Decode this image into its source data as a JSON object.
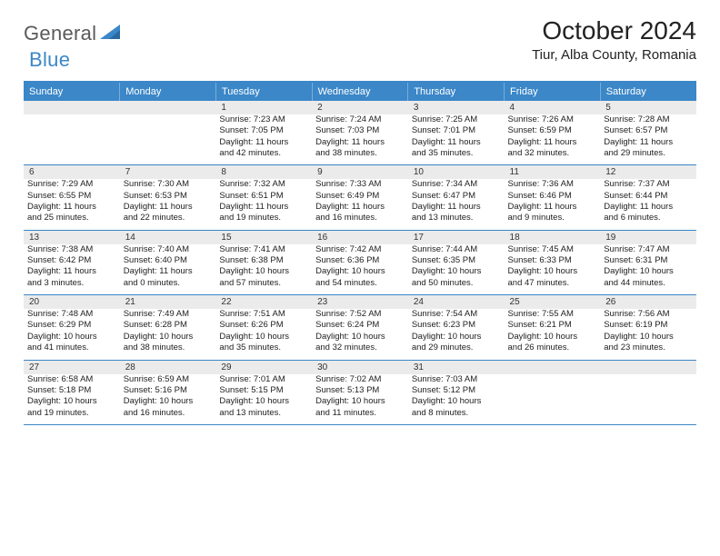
{
  "logo": {
    "primary": "General",
    "secondary": "Blue"
  },
  "title": "October 2024",
  "location": "Tiur, Alba County, Romania",
  "colors": {
    "header_bg": "#3b87c8",
    "header_text": "#ffffff",
    "daynum_bg": "#ebebeb",
    "border": "#3b87c8",
    "logo_gray": "#5a5a5a",
    "logo_blue": "#3b87c8"
  },
  "day_headers": [
    "Sunday",
    "Monday",
    "Tuesday",
    "Wednesday",
    "Thursday",
    "Friday",
    "Saturday"
  ],
  "weeks": [
    [
      null,
      null,
      {
        "n": "1",
        "sr": "Sunrise: 7:23 AM",
        "ss": "Sunset: 7:05 PM",
        "d1": "Daylight: 11 hours",
        "d2": "and 42 minutes."
      },
      {
        "n": "2",
        "sr": "Sunrise: 7:24 AM",
        "ss": "Sunset: 7:03 PM",
        "d1": "Daylight: 11 hours",
        "d2": "and 38 minutes."
      },
      {
        "n": "3",
        "sr": "Sunrise: 7:25 AM",
        "ss": "Sunset: 7:01 PM",
        "d1": "Daylight: 11 hours",
        "d2": "and 35 minutes."
      },
      {
        "n": "4",
        "sr": "Sunrise: 7:26 AM",
        "ss": "Sunset: 6:59 PM",
        "d1": "Daylight: 11 hours",
        "d2": "and 32 minutes."
      },
      {
        "n": "5",
        "sr": "Sunrise: 7:28 AM",
        "ss": "Sunset: 6:57 PM",
        "d1": "Daylight: 11 hours",
        "d2": "and 29 minutes."
      }
    ],
    [
      {
        "n": "6",
        "sr": "Sunrise: 7:29 AM",
        "ss": "Sunset: 6:55 PM",
        "d1": "Daylight: 11 hours",
        "d2": "and 25 minutes."
      },
      {
        "n": "7",
        "sr": "Sunrise: 7:30 AM",
        "ss": "Sunset: 6:53 PM",
        "d1": "Daylight: 11 hours",
        "d2": "and 22 minutes."
      },
      {
        "n": "8",
        "sr": "Sunrise: 7:32 AM",
        "ss": "Sunset: 6:51 PM",
        "d1": "Daylight: 11 hours",
        "d2": "and 19 minutes."
      },
      {
        "n": "9",
        "sr": "Sunrise: 7:33 AM",
        "ss": "Sunset: 6:49 PM",
        "d1": "Daylight: 11 hours",
        "d2": "and 16 minutes."
      },
      {
        "n": "10",
        "sr": "Sunrise: 7:34 AM",
        "ss": "Sunset: 6:47 PM",
        "d1": "Daylight: 11 hours",
        "d2": "and 13 minutes."
      },
      {
        "n": "11",
        "sr": "Sunrise: 7:36 AM",
        "ss": "Sunset: 6:46 PM",
        "d1": "Daylight: 11 hours",
        "d2": "and 9 minutes."
      },
      {
        "n": "12",
        "sr": "Sunrise: 7:37 AM",
        "ss": "Sunset: 6:44 PM",
        "d1": "Daylight: 11 hours",
        "d2": "and 6 minutes."
      }
    ],
    [
      {
        "n": "13",
        "sr": "Sunrise: 7:38 AM",
        "ss": "Sunset: 6:42 PM",
        "d1": "Daylight: 11 hours",
        "d2": "and 3 minutes."
      },
      {
        "n": "14",
        "sr": "Sunrise: 7:40 AM",
        "ss": "Sunset: 6:40 PM",
        "d1": "Daylight: 11 hours",
        "d2": "and 0 minutes."
      },
      {
        "n": "15",
        "sr": "Sunrise: 7:41 AM",
        "ss": "Sunset: 6:38 PM",
        "d1": "Daylight: 10 hours",
        "d2": "and 57 minutes."
      },
      {
        "n": "16",
        "sr": "Sunrise: 7:42 AM",
        "ss": "Sunset: 6:36 PM",
        "d1": "Daylight: 10 hours",
        "d2": "and 54 minutes."
      },
      {
        "n": "17",
        "sr": "Sunrise: 7:44 AM",
        "ss": "Sunset: 6:35 PM",
        "d1": "Daylight: 10 hours",
        "d2": "and 50 minutes."
      },
      {
        "n": "18",
        "sr": "Sunrise: 7:45 AM",
        "ss": "Sunset: 6:33 PM",
        "d1": "Daylight: 10 hours",
        "d2": "and 47 minutes."
      },
      {
        "n": "19",
        "sr": "Sunrise: 7:47 AM",
        "ss": "Sunset: 6:31 PM",
        "d1": "Daylight: 10 hours",
        "d2": "and 44 minutes."
      }
    ],
    [
      {
        "n": "20",
        "sr": "Sunrise: 7:48 AM",
        "ss": "Sunset: 6:29 PM",
        "d1": "Daylight: 10 hours",
        "d2": "and 41 minutes."
      },
      {
        "n": "21",
        "sr": "Sunrise: 7:49 AM",
        "ss": "Sunset: 6:28 PM",
        "d1": "Daylight: 10 hours",
        "d2": "and 38 minutes."
      },
      {
        "n": "22",
        "sr": "Sunrise: 7:51 AM",
        "ss": "Sunset: 6:26 PM",
        "d1": "Daylight: 10 hours",
        "d2": "and 35 minutes."
      },
      {
        "n": "23",
        "sr": "Sunrise: 7:52 AM",
        "ss": "Sunset: 6:24 PM",
        "d1": "Daylight: 10 hours",
        "d2": "and 32 minutes."
      },
      {
        "n": "24",
        "sr": "Sunrise: 7:54 AM",
        "ss": "Sunset: 6:23 PM",
        "d1": "Daylight: 10 hours",
        "d2": "and 29 minutes."
      },
      {
        "n": "25",
        "sr": "Sunrise: 7:55 AM",
        "ss": "Sunset: 6:21 PM",
        "d1": "Daylight: 10 hours",
        "d2": "and 26 minutes."
      },
      {
        "n": "26",
        "sr": "Sunrise: 7:56 AM",
        "ss": "Sunset: 6:19 PM",
        "d1": "Daylight: 10 hours",
        "d2": "and 23 minutes."
      }
    ],
    [
      {
        "n": "27",
        "sr": "Sunrise: 6:58 AM",
        "ss": "Sunset: 5:18 PM",
        "d1": "Daylight: 10 hours",
        "d2": "and 19 minutes."
      },
      {
        "n": "28",
        "sr": "Sunrise: 6:59 AM",
        "ss": "Sunset: 5:16 PM",
        "d1": "Daylight: 10 hours",
        "d2": "and 16 minutes."
      },
      {
        "n": "29",
        "sr": "Sunrise: 7:01 AM",
        "ss": "Sunset: 5:15 PM",
        "d1": "Daylight: 10 hours",
        "d2": "and 13 minutes."
      },
      {
        "n": "30",
        "sr": "Sunrise: 7:02 AM",
        "ss": "Sunset: 5:13 PM",
        "d1": "Daylight: 10 hours",
        "d2": "and 11 minutes."
      },
      {
        "n": "31",
        "sr": "Sunrise: 7:03 AM",
        "ss": "Sunset: 5:12 PM",
        "d1": "Daylight: 10 hours",
        "d2": "and 8 minutes."
      },
      null,
      null
    ]
  ]
}
